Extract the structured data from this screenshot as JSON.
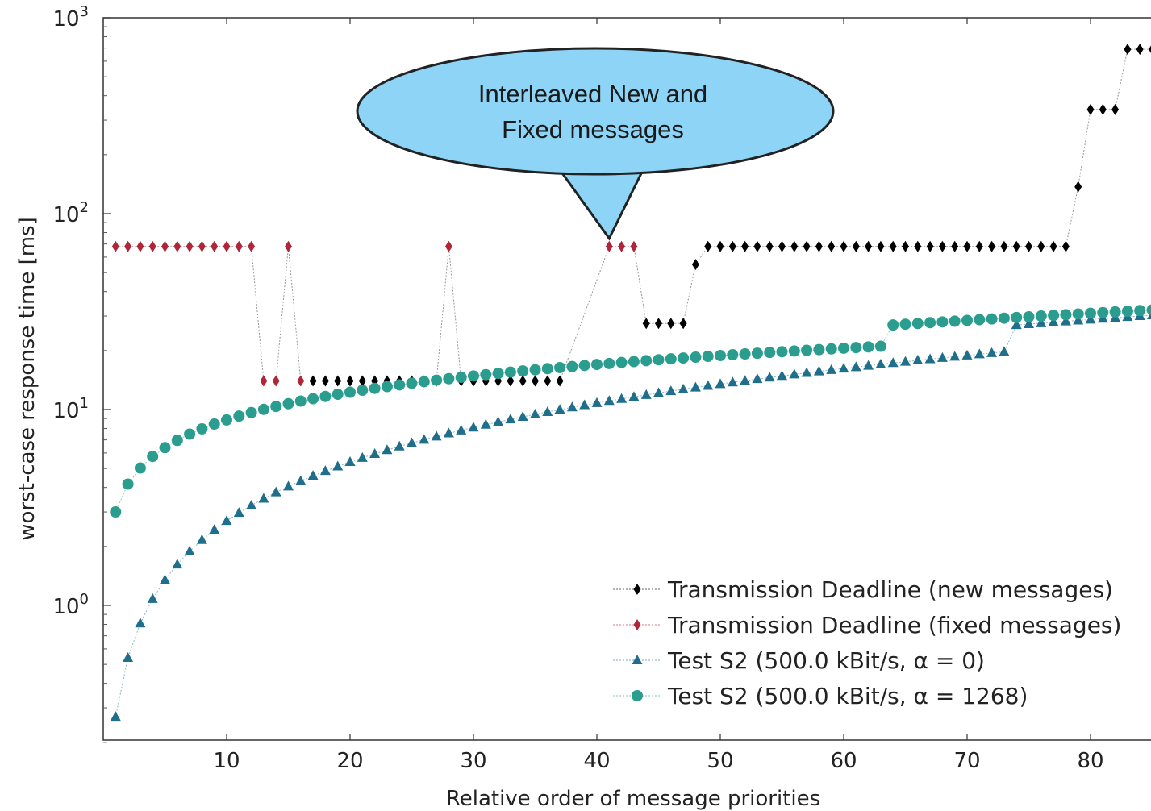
{
  "chart_data": {
    "type": "scatter",
    "title": "",
    "xlabel": "Relative order of message priorities",
    "ylabel": "worst-case response time [ms]",
    "xscale": "linear",
    "yscale": "log",
    "xlim": [
      0.5,
      85
    ],
    "ylim": [
      0.2,
      1000
    ],
    "xticks": [
      10,
      20,
      30,
      40,
      50,
      60,
      70,
      80
    ],
    "yticks": [
      {
        "value": 1,
        "base": "10",
        "exp": "0"
      },
      {
        "value": 10,
        "base": "10",
        "exp": "1"
      },
      {
        "value": 100,
        "base": "10",
        "exp": "2"
      },
      {
        "value": 1000,
        "base": "10",
        "exp": "3"
      }
    ],
    "grid": false,
    "legend_position": "bottom-right",
    "series": [
      {
        "name": "Transmission Deadline (new messages)",
        "marker": "diamond",
        "color": "#000000",
        "points": [
          [
            17,
            14
          ],
          [
            18,
            14
          ],
          [
            19,
            14
          ],
          [
            20,
            14
          ],
          [
            21,
            14
          ],
          [
            22,
            14
          ],
          [
            23,
            14
          ],
          [
            24,
            14
          ],
          [
            25,
            14
          ],
          [
            26,
            14
          ],
          [
            27,
            14
          ],
          [
            29,
            14
          ],
          [
            30,
            14
          ],
          [
            31,
            14
          ],
          [
            32,
            14
          ],
          [
            33,
            14
          ],
          [
            34,
            14
          ],
          [
            35,
            14
          ],
          [
            36,
            14
          ],
          [
            37,
            14
          ],
          [
            44,
            27.5
          ],
          [
            45,
            27.5
          ],
          [
            46,
            27.5
          ],
          [
            47,
            27.5
          ],
          [
            48,
            55
          ],
          [
            49,
            68
          ],
          [
            50,
            68
          ],
          [
            51,
            68
          ],
          [
            52,
            68
          ],
          [
            53,
            68
          ],
          [
            54,
            68
          ],
          [
            55,
            68
          ],
          [
            56,
            68
          ],
          [
            57,
            68
          ],
          [
            58,
            68
          ],
          [
            59,
            68
          ],
          [
            60,
            68
          ],
          [
            61,
            68
          ],
          [
            62,
            68
          ],
          [
            63,
            68
          ],
          [
            64,
            68
          ],
          [
            65,
            68
          ],
          [
            66,
            68
          ],
          [
            67,
            68
          ],
          [
            68,
            68
          ],
          [
            69,
            68
          ],
          [
            70,
            68
          ],
          [
            71,
            68
          ],
          [
            72,
            68
          ],
          [
            73,
            68
          ],
          [
            74,
            68
          ],
          [
            75,
            68
          ],
          [
            76,
            68
          ],
          [
            77,
            68
          ],
          [
            78,
            68
          ],
          [
            79,
            137
          ],
          [
            80,
            340
          ],
          [
            81,
            340
          ],
          [
            82,
            340
          ],
          [
            83,
            690
          ],
          [
            84,
            690
          ],
          [
            85,
            690
          ]
        ]
      },
      {
        "name": "Transmission Deadline (fixed messages)",
        "marker": "diamond",
        "color": "#b0253a",
        "points": [
          [
            1,
            68
          ],
          [
            2,
            68
          ],
          [
            3,
            68
          ],
          [
            4,
            68
          ],
          [
            5,
            68
          ],
          [
            6,
            68
          ],
          [
            7,
            68
          ],
          [
            8,
            68
          ],
          [
            9,
            68
          ],
          [
            10,
            68
          ],
          [
            11,
            68
          ],
          [
            12,
            68
          ],
          [
            13,
            14
          ],
          [
            14,
            14
          ],
          [
            15,
            68
          ],
          [
            16,
            14
          ],
          [
            28,
            68
          ],
          [
            41,
            68
          ],
          [
            42,
            68
          ],
          [
            43,
            68
          ]
        ]
      },
      {
        "name": "Test S2 (500.0 kBit/s, α = 0)",
        "marker": "triangle",
        "color": "#1f6e8c",
        "rule": "y = 0.27 * x for x ≤ 73; y = 27 + 0.3 * (x - 74) for x ≥ 74",
        "x_start": 1,
        "x_end": 85
      },
      {
        "name": "Test S2 (500.0 kBit/s, α = 1268)",
        "marker": "circle",
        "color": "#2a9d8f",
        "rule": "y = 3.0 * (x / 1)^0.47 for x ≤ 63; y = 27 + 0.25 * (x - 64) for x ≥ 64",
        "x_start": 1,
        "x_end": 85
      }
    ],
    "legend": [
      {
        "label": "Transmission Deadline (new messages)",
        "marker": "diamond",
        "color": "#000000"
      },
      {
        "label": "Transmission Deadline (fixed messages)",
        "marker": "diamond",
        "color": "#b0253a"
      },
      {
        "label": "Test S2 (500.0 kBit/s, α = 0)",
        "marker": "triangle",
        "color": "#1f6e8c"
      },
      {
        "label": "Test S2 (500.0 kBit/s, α = 1268)",
        "marker": "circle",
        "color": "#2a9d8f"
      }
    ],
    "annotation": {
      "text_lines": [
        "Interleaved New and",
        "Fixed messages"
      ],
      "fill": "#8dd4f6",
      "points_to": [
        41,
        68
      ]
    }
  }
}
